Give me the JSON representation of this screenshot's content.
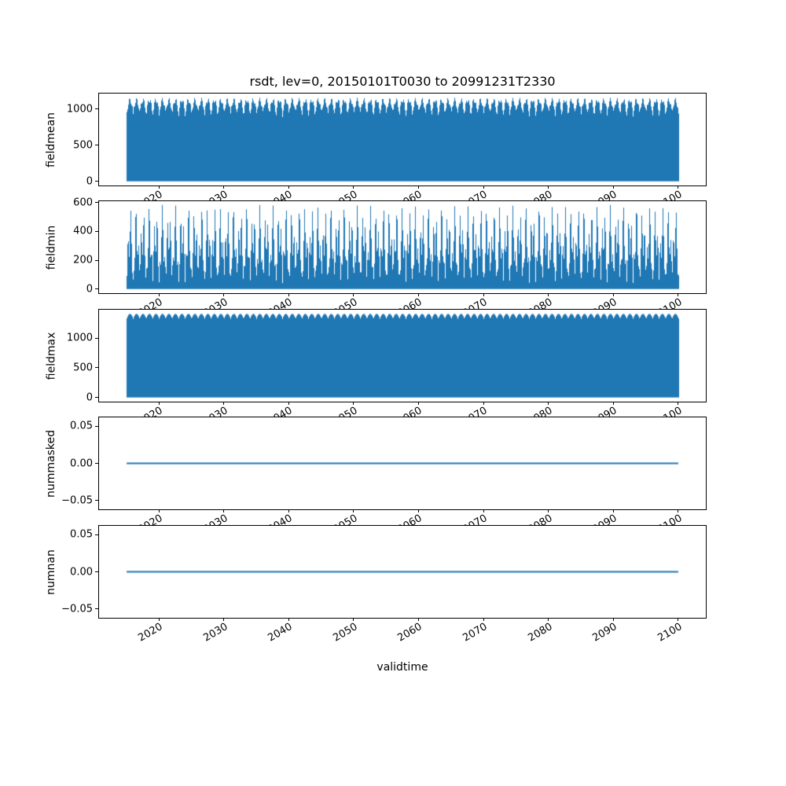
{
  "figure": {
    "title": "rsdt, lev=0, 20150101T0030 to 20991231T2330",
    "xlabel": "validtime",
    "background_color": "#ffffff",
    "series_color": "#1f77b4",
    "axis_color": "#000000"
  },
  "chart_data": {
    "type": "line",
    "title": "rsdt, lev=0, 20150101T0030 to 20991231T2330",
    "xlabel": "validtime",
    "grid": false,
    "legend": false,
    "x_range": [
      2015.04,
      2100.0
    ],
    "xlim": [
      2010.79,
      2104.25
    ],
    "xticks": [
      2020,
      2030,
      2040,
      2050,
      2060,
      2070,
      2080,
      2090,
      2100
    ],
    "xtick_labels": [
      "2020",
      "2030",
      "2040",
      "2050",
      "2060",
      "2070",
      "2080",
      "2090",
      "2100"
    ],
    "panels": [
      {
        "name": "fieldmean",
        "ylabel": "fieldmean",
        "kind": "dense_fill",
        "ylim": [
          -57.8,
          1212.8
        ],
        "yticks": [
          0,
          500,
          1000
        ],
        "ytick_labels": [
          "0",
          "500",
          "1000"
        ],
        "fill_base": 0,
        "envelope_min": 940,
        "envelope_max": 1155,
        "peak_exponent": 0.8,
        "substructure": {
          "freq": 7.3,
          "depth": 0.06,
          "exponent": 2
        }
      },
      {
        "name": "fieldmin",
        "ylabel": "fieldmin",
        "kind": "dense_fill",
        "ylim": [
          -29,
          609
        ],
        "yticks": [
          0,
          200,
          400,
          600
        ],
        "ytick_labels": [
          "0",
          "200",
          "400",
          "600"
        ],
        "fill_base": 0,
        "envelope_min": 90,
        "envelope_max": 585,
        "peak_exponent": 1.0,
        "substructure": {
          "freq": 11.4,
          "depth": 0.6,
          "exponent": 2
        }
      },
      {
        "name": "fieldmax",
        "ylabel": "fieldmax",
        "kind": "dense_fill",
        "ylim": [
          -70.4,
          1478.4
        ],
        "yticks": [
          0,
          500,
          1000
        ],
        "ytick_labels": [
          "0",
          "500",
          "1000"
        ],
        "fill_base": 0,
        "envelope_min": 1320,
        "envelope_max": 1408,
        "peak_exponent": 0.8
      },
      {
        "name": "nummasked",
        "ylabel": "nummasked",
        "kind": "flat_line",
        "ylim": [
          -0.062,
          0.062
        ],
        "yticks": [
          0.05,
          0.0,
          -0.05
        ],
        "ytick_labels": [
          "0.05",
          "0.00",
          "−0.05"
        ],
        "value": 0
      },
      {
        "name": "numnan",
        "ylabel": "numnan",
        "kind": "flat_line",
        "ylim": [
          -0.062,
          0.062
        ],
        "yticks": [
          0.05,
          0.0,
          -0.05
        ],
        "ytick_labels": [
          "0.05",
          "0.00",
          "−0.05"
        ],
        "value": 0
      }
    ]
  }
}
